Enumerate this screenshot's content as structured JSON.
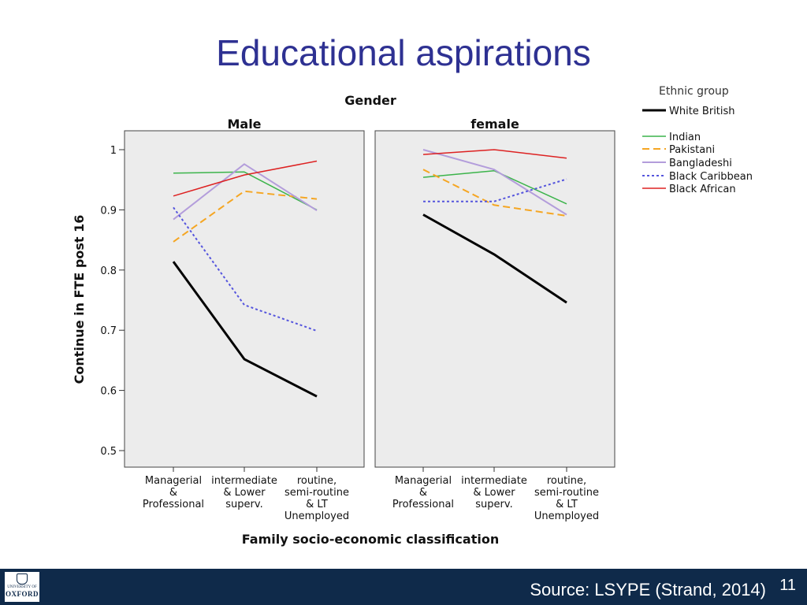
{
  "slide": {
    "title": "Educational aspirations",
    "source": "Source:  LSYPE (Strand, 2014)",
    "page_number": "11"
  },
  "footer": {
    "logo_line1": "UNIVERSITY OF",
    "logo_line2": "OXFORD"
  },
  "chart_data": {
    "type": "line",
    "title": "Gender",
    "xlabel": "Family socio-economic classification",
    "ylabel": "Continue in FTE post 16",
    "ylim": [
      0.5,
      1.0
    ],
    "yticks": [
      "0.5",
      "0.6",
      "0.7",
      "0.8",
      "0.9",
      "1"
    ],
    "categories": [
      [
        "Managerial",
        "&",
        "Professional"
      ],
      [
        "intermediate",
        "& Lower",
        "superv."
      ],
      [
        "routine,",
        "semi-routine",
        "& LT",
        "Unemployed"
      ]
    ],
    "legend": {
      "title": "Ethnic group",
      "placement": "right"
    },
    "series_styles": [
      {
        "name": "White British",
        "color": "#000000",
        "width": 3,
        "dash": ""
      },
      {
        "name": "Indian",
        "color": "#3cb44b",
        "width": 1.5,
        "dash": ""
      },
      {
        "name": "Pakistani",
        "color": "#f5a623",
        "width": 2,
        "dash": "9 5"
      },
      {
        "name": "Bangladeshi",
        "color": "#b39ddb",
        "width": 2,
        "dash": ""
      },
      {
        "name": "Black Caribbean",
        "color": "#5555dd",
        "width": 2,
        "dash": "3 3"
      },
      {
        "name": "Black African",
        "color": "#dd2222",
        "width": 1.5,
        "dash": ""
      }
    ],
    "panels": [
      {
        "name": "Male",
        "series": [
          {
            "name": "White British",
            "values": [
              0.814,
              0.652,
              0.59
            ]
          },
          {
            "name": "Indian",
            "values": [
              0.961,
              0.963,
              0.9
            ]
          },
          {
            "name": "Pakistani",
            "values": [
              0.847,
              0.931,
              0.918
            ]
          },
          {
            "name": "Bangladeshi",
            "values": [
              0.884,
              0.976,
              0.899
            ]
          },
          {
            "name": "Black Caribbean",
            "values": [
              0.904,
              0.742,
              0.699
            ]
          },
          {
            "name": "Black African",
            "values": [
              0.923,
              0.958,
              0.981
            ]
          }
        ]
      },
      {
        "name": "female",
        "series": [
          {
            "name": "White British",
            "values": [
              0.892,
              0.826,
              0.746
            ]
          },
          {
            "name": "Indian",
            "values": [
              0.954,
              0.965,
              0.91
            ]
          },
          {
            "name": "Pakistani",
            "values": [
              0.967,
              0.908,
              0.89
            ]
          },
          {
            "name": "Bangladeshi",
            "values": [
              1.0,
              0.967,
              0.892
            ]
          },
          {
            "name": "Black Caribbean",
            "values": [
              0.914,
              0.914,
              0.951
            ]
          },
          {
            "name": "Black African",
            "values": [
              0.992,
              1.0,
              0.986
            ]
          }
        ]
      }
    ]
  }
}
